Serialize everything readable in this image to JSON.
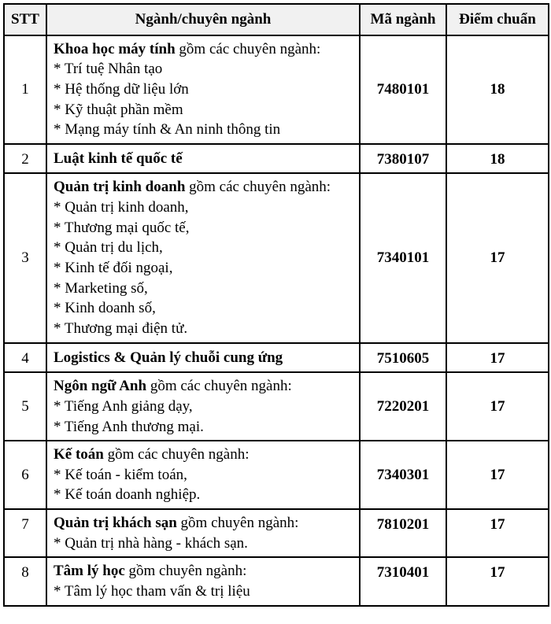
{
  "headers": {
    "stt": "STT",
    "major": "Ngành/chuyên ngành",
    "code": "Mã ngành",
    "score": "Điểm chuẩn"
  },
  "rows": [
    {
      "stt": "1",
      "code": "7480101",
      "score": "18",
      "stt_align": "middle",
      "code_align": "middle",
      "score_align": "middle",
      "major_lines": [
        {
          "title": "Khoa học máy tính",
          "desc": " gồm các chuyên ngành:"
        },
        {
          "desc": "* Trí tuệ Nhân tạo"
        },
        {
          "desc": "* Hệ thống dữ liệu lớn"
        },
        {
          "desc": "* Kỹ thuật phần mềm"
        },
        {
          "desc": "* Mạng máy tính & An ninh thông tin"
        }
      ]
    },
    {
      "stt": "2",
      "code": "7380107",
      "score": "18",
      "stt_align": "top",
      "code_align": "top",
      "score_align": "top",
      "major_lines": [
        {
          "title": "Luật kinh tế quốc tế"
        }
      ]
    },
    {
      "stt": "3",
      "code": "7340101",
      "score": "17",
      "stt_align": "middle",
      "code_align": "middle",
      "score_align": "middle",
      "major_lines": [
        {
          "title": "Quản trị kinh doanh",
          "desc": " gồm các chuyên ngành:"
        },
        {
          "desc": "* Quản trị kinh doanh,"
        },
        {
          "desc": "* Thương mại quốc tế,"
        },
        {
          "desc": "* Quản trị du lịch,"
        },
        {
          "desc": "* Kinh tế đối ngoại,"
        },
        {
          "desc": "* Marketing số,"
        },
        {
          "desc": "* Kinh doanh số,"
        },
        {
          "desc": "* Thương mại điện tử."
        }
      ]
    },
    {
      "stt": "4",
      "code": "7510605",
      "score": "17",
      "stt_align": "top",
      "code_align": "top",
      "score_align": "top",
      "major_lines": [
        {
          "title": "Logistics & Quản lý chuỗi cung ứng"
        }
      ]
    },
    {
      "stt": "5",
      "code": "7220201",
      "score": "17",
      "stt_align": "middle",
      "code_align": "middle",
      "score_align": "middle",
      "major_lines": [
        {
          "title": "Ngôn ngữ Anh",
          "desc": " gồm các chuyên ngành:"
        },
        {
          "desc": "* Tiếng Anh giảng dạy,"
        },
        {
          "desc": "* Tiếng Anh thương mại."
        }
      ]
    },
    {
      "stt": "6",
      "code": "7340301",
      "score": "17",
      "stt_align": "middle",
      "code_align": "middle",
      "score_align": "middle",
      "major_lines": [
        {
          "title": "Kế toán",
          "desc": " gồm các chuyên ngành:"
        },
        {
          "desc": "* Kế toán - kiểm toán,"
        },
        {
          "desc": "* Kế toán doanh nghiệp."
        }
      ]
    },
    {
      "stt": "7",
      "code": "7810201",
      "score": "17",
      "stt_align": "top",
      "code_align": "top",
      "score_align": "top",
      "major_lines": [
        {
          "title": "Quản trị khách sạn",
          "desc": " gồm chuyên ngành:"
        },
        {
          "desc": "* Quản trị nhà hàng - khách sạn."
        }
      ]
    },
    {
      "stt": "8",
      "code": "7310401",
      "score": "17",
      "stt_align": "top",
      "code_align": "top",
      "score_align": "top",
      "major_lines": [
        {
          "title": "Tâm lý học",
          "desc": " gồm chuyên ngành:"
        },
        {
          "desc": "* Tâm lý học tham vấn & trị liệu"
        }
      ]
    }
  ]
}
